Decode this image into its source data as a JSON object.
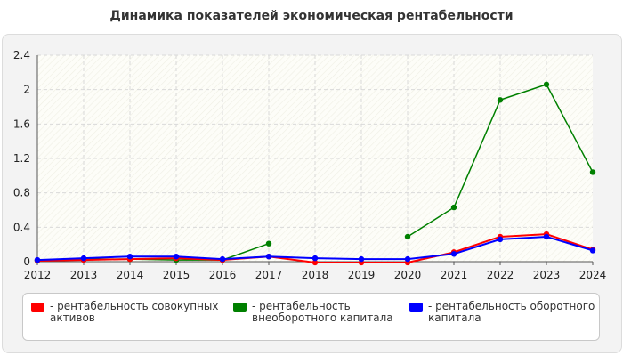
{
  "title": "Динамика показателей экономическая рентабельности",
  "chart_data": {
    "type": "line",
    "x": [
      "2012",
      "2013",
      "2014",
      "2015",
      "2016",
      "2017",
      "2018",
      "2019",
      "2020",
      "2021",
      "2022",
      "2023",
      "2024"
    ],
    "yticks": [
      "0",
      "0.4",
      "0.8",
      "1.2",
      "1.6",
      "2",
      "2.4"
    ],
    "ylim": [
      0,
      2.4
    ],
    "grid": true,
    "legend_position": "bottom",
    "series": [
      {
        "name": "- рентабельность совокупных активов",
        "color": "#ff0000",
        "values": [
          0.01,
          0.02,
          0.03,
          0.04,
          0.02,
          0.06,
          -0.01,
          -0.01,
          -0.01,
          0.11,
          0.29,
          0.32,
          0.14
        ]
      },
      {
        "name": "- рентабельность внеоборотного капитала",
        "color": "#008000",
        "values": [
          0.01,
          0.03,
          0.03,
          0.02,
          0.02,
          0.21,
          null,
          null,
          0.29,
          0.63,
          1.88,
          2.06,
          1.04
        ]
      },
      {
        "name": "- рентабельность оборотного капитала",
        "color": "#0000ff",
        "values": [
          0.02,
          0.04,
          0.06,
          0.06,
          0.03,
          0.06,
          0.04,
          0.03,
          0.03,
          0.09,
          0.26,
          0.29,
          0.13
        ]
      }
    ]
  }
}
